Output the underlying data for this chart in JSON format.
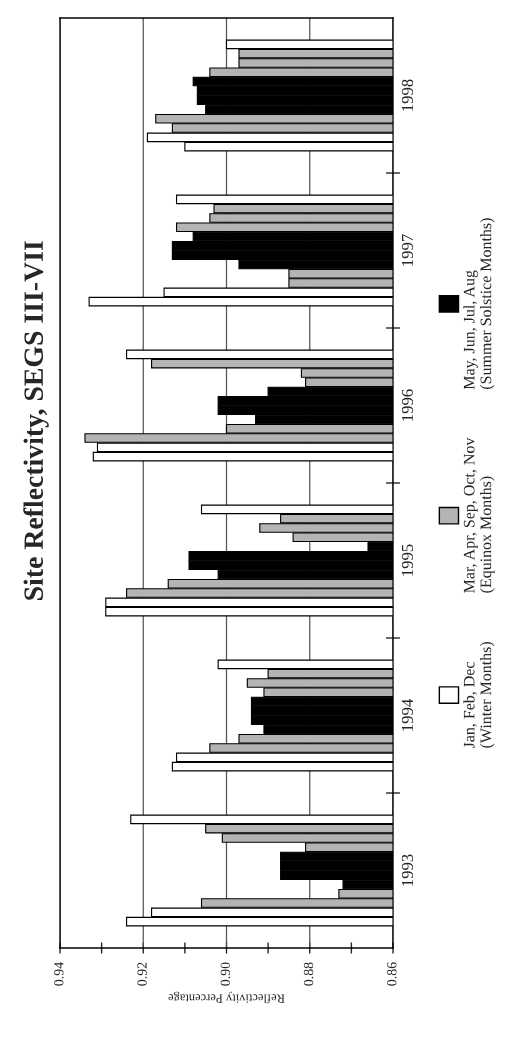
{
  "chart_data": {
    "type": "bar",
    "orientation": "horizontal",
    "title": "Site Reflectivity, SEGS III-VII",
    "xlabel": "Reflectivity Percentage",
    "xlim": [
      0.94,
      0.86
    ],
    "xticks": [
      0.94,
      {
        "value": 0.93,
        "label": null
      },
      0.92,
      {
        "value": 0.91,
        "label": null
      },
      {
        "value": 0.9,
        "label": "0.90"
      },
      {
        "value": 0.89,
        "label": null
      },
      0.88,
      {
        "value": 0.87,
        "label": null
      },
      0.86
    ],
    "ylim": [
      1992.5,
      1998.5
    ],
    "yticks": [
      1993,
      1994,
      1995,
      1996,
      1997,
      1998,
      {
        "value": 1993.5,
        "label": null
      },
      {
        "value": 1994.5,
        "label": null
      },
      {
        "value": 1995.5,
        "label": null
      },
      {
        "value": 1996.5,
        "label": null
      },
      {
        "value": 1997.5,
        "label": null
      }
    ],
    "grid": "x",
    "legend": "right",
    "x": [
      1992.67,
      1992.73,
      1992.79,
      1992.85,
      1992.91,
      1992.97,
      1993.03,
      1993.09,
      1993.15,
      1993.21,
      1993.27,
      1993.33,
      1993.67,
      1993.73,
      1993.79,
      1993.85,
      1993.91,
      1993.97,
      1994.03,
      1994.09,
      1994.15,
      1994.21,
      1994.27,
      1994.33,
      1994.67,
      1994.73,
      1994.79,
      1994.85,
      1994.91,
      1994.97,
      1995.03,
      1995.09,
      1995.15,
      1995.21,
      1995.27,
      1995.33,
      1995.67,
      1995.73,
      1995.79,
      1995.85,
      1995.91,
      1995.97,
      1996.03,
      1996.09,
      1996.15,
      1996.21,
      1996.27,
      1996.33,
      1996.67,
      1996.73,
      1996.79,
      1996.85,
      1996.91,
      1996.97,
      1997.03,
      1997.09,
      1997.15,
      1997.21,
      1997.27,
      1997.33,
      1997.67,
      1997.73,
      1997.79,
      1997.85,
      1997.91,
      1997.97,
      1998.03,
      1998.09,
      1998.15,
      1998.21,
      1998.27,
      1998.33
    ],
    "series": [
      {
        "name": "Jan, Feb, Dec\n(Winter Months)",
        "color": "#ffffff",
        "values": [
          0.924,
          0.918,
          null,
          null,
          null,
          null,
          null,
          null,
          null,
          null,
          null,
          0.923,
          0.913,
          0.912,
          null,
          null,
          null,
          null,
          null,
          null,
          null,
          null,
          null,
          0.902,
          0.929,
          0.929,
          null,
          null,
          null,
          null,
          null,
          null,
          null,
          null,
          null,
          0.906,
          0.932,
          0.931,
          null,
          null,
          null,
          null,
          null,
          null,
          null,
          null,
          null,
          0.924,
          0.933,
          0.915,
          null,
          null,
          null,
          null,
          null,
          null,
          null,
          null,
          null,
          0.912,
          0.91,
          0.919,
          null,
          null,
          null,
          null,
          null,
          null,
          null,
          null,
          null,
          0.9
        ]
      },
      {
        "name": "Mar, Apr, Sep, Oct, Nov\n(Equinox Months)",
        "color": "#b4b4b4",
        "values": [
          null,
          null,
          0.906,
          0.873,
          null,
          null,
          null,
          null,
          0.881,
          0.901,
          0.905,
          null,
          null,
          null,
          0.904,
          0.897,
          null,
          null,
          null,
          null,
          0.891,
          0.895,
          0.89,
          null,
          null,
          null,
          0.924,
          0.914,
          null,
          null,
          null,
          null,
          0.884,
          0.892,
          0.887,
          null,
          null,
          null,
          0.934,
          0.9,
          null,
          null,
          null,
          null,
          0.881,
          0.882,
          0.918,
          null,
          null,
          null,
          0.885,
          0.885,
          null,
          null,
          null,
          null,
          0.912,
          0.904,
          0.903,
          null,
          null,
          null,
          0.913,
          0.917,
          null,
          null,
          null,
          null,
          0.904,
          0.897,
          0.897,
          null
        ]
      },
      {
        "name": "May, Jun, Jul, Aug\n(Summer Solstice Months)",
        "color": "#000000",
        "values": [
          null,
          null,
          null,
          null,
          0.872,
          0.887,
          0.887,
          0.887,
          null,
          null,
          null,
          null,
          null,
          null,
          null,
          null,
          0.891,
          0.894,
          0.894,
          0.894,
          null,
          null,
          null,
          null,
          null,
          null,
          null,
          null,
          0.902,
          0.909,
          0.909,
          0.866,
          null,
          null,
          null,
          null,
          null,
          null,
          null,
          null,
          0.893,
          0.902,
          0.902,
          0.89,
          null,
          null,
          null,
          null,
          null,
          null,
          null,
          null,
          0.897,
          0.913,
          0.913,
          0.908,
          null,
          null,
          null,
          null,
          null,
          null,
          null,
          null,
          0.905,
          0.907,
          0.907,
          0.908,
          null,
          null,
          null,
          null
        ]
      }
    ]
  }
}
